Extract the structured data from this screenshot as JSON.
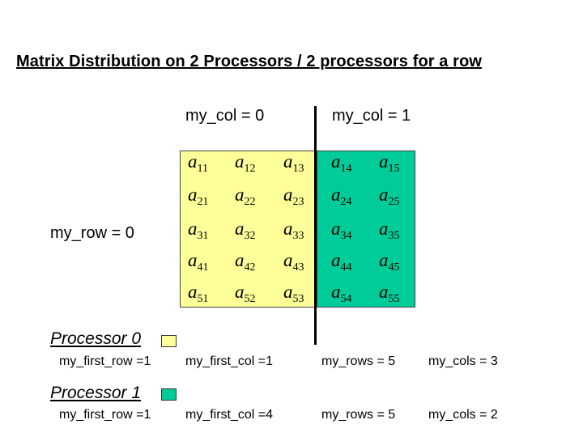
{
  "title": "Matrix Distribution on 2 Processors / 2 processors for a row",
  "col_labels": [
    "my_col = 0",
    "my_col = 1"
  ],
  "row_label": "my_row = 0",
  "matrix": {
    "rows": [
      [
        "11",
        "12",
        "13",
        "14",
        "15"
      ],
      [
        "21",
        "22",
        "23",
        "24",
        "25"
      ],
      [
        "31",
        "32",
        "33",
        "34",
        "35"
      ],
      [
        "41",
        "42",
        "43",
        "44",
        "45"
      ],
      [
        "51",
        "52",
        "53",
        "54",
        "55"
      ]
    ],
    "symbol": "a"
  },
  "colors": {
    "processor_0": "#ffff99",
    "processor_1": "#00cc99"
  },
  "processors": [
    {
      "label": "Processor 0",
      "first_row": "my_first_row =1",
      "first_col": "my_first_col =1",
      "rows": "my_rows = 5",
      "cols": "my_cols = 3"
    },
    {
      "label": "Processor 1",
      "first_row": "my_first_row =1",
      "first_col": "my_first_col =4",
      "rows": "my_rows = 5",
      "cols": "my_cols = 2"
    }
  ]
}
